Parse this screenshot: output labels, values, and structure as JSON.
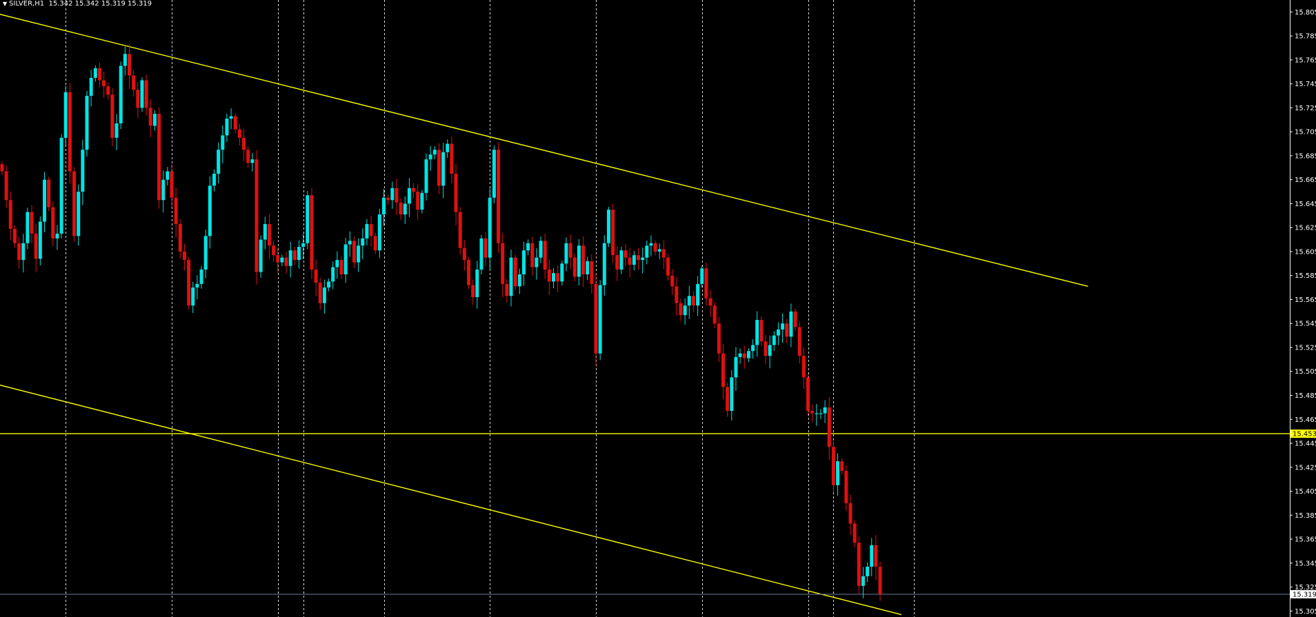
{
  "header": {
    "symbol": "SILVER,H1",
    "open": "15.342",
    "high": "15.342",
    "low": "15.319",
    "close": "15.319",
    "collapse_icon": "triangle-down-icon"
  },
  "colors": {
    "background": "#000000",
    "bull_candle": "#00e5e5",
    "bear_candle": "#e01010",
    "trendline": "#ffff00",
    "vgrid": "#ffffff",
    "axis_text": "#ffffff",
    "last_price_line": "#6a7f99",
    "last_price_tag": "#ffffff",
    "horizontal_level_tag": "#ffff00"
  },
  "chart_data": {
    "type": "candlestick",
    "symbol": "SILVER",
    "timeframe": "H1",
    "price_ticks": [
      "15.805",
      "15.785",
      "15.765",
      "15.745",
      "15.725",
      "15.705",
      "15.685",
      "15.665",
      "15.645",
      "15.625",
      "15.605",
      "15.585",
      "15.565",
      "15.545",
      "15.525",
      "15.505",
      "15.485",
      "15.465",
      "15.445",
      "15.425",
      "15.405",
      "15.385",
      "15.365",
      "15.345",
      "15.325",
      "15.305"
    ],
    "y_range": [
      15.3,
      15.815
    ],
    "horizontal_level": {
      "value": 15.453,
      "label": "15.453"
    },
    "last_price": {
      "value": 15.319,
      "label": "15.319"
    },
    "trendlines": [
      {
        "name": "upper-channel",
        "p1": {
          "bar": -1,
          "price": 15.8035
        },
        "p2": {
          "bar": 256,
          "price": 15.576
        }
      },
      {
        "name": "lower-channel",
        "p1": {
          "bar": -1,
          "price": 15.494
        },
        "p2": {
          "bar": 212,
          "price": 15.302
        }
      }
    ],
    "vgrid_bars": [
      15,
      40,
      65,
      71,
      90,
      115,
      140,
      165,
      190,
      196,
      215
    ],
    "closes": [
      15.672,
      15.648,
      15.624,
      15.612,
      15.598,
      15.612,
      15.638,
      15.62,
      15.599,
      15.63,
      15.665,
      15.642,
      15.616,
      15.62,
      15.7,
      15.738,
      15.672,
      15.618,
      15.655,
      15.69,
      15.735,
      15.75,
      15.758,
      15.748,
      15.743,
      15.736,
      15.7,
      15.712,
      15.76,
      15.77,
      15.752,
      15.74,
      15.725,
      15.748,
      15.725,
      15.71,
      15.72,
      15.648,
      15.665,
      15.672,
      15.65,
      15.628,
      15.605,
      15.598,
      15.56,
      15.575,
      15.578,
      15.59,
      15.618,
      15.66,
      15.67,
      15.69,
      15.702,
      15.716,
      15.718,
      15.707,
      15.7,
      15.69,
      15.679,
      15.682,
      15.588,
      15.615,
      15.628,
      15.61,
      15.602,
      15.596,
      15.6,
      15.593,
      15.606,
      15.598,
      15.609,
      15.612,
      15.652,
      15.59,
      15.579,
      15.562,
      15.575,
      15.58,
      15.592,
      15.598,
      15.586,
      15.611,
      15.614,
      15.596,
      15.61,
      15.616,
      15.628,
      15.618,
      15.606,
      15.636,
      15.65,
      15.648,
      15.658,
      15.646,
      15.636,
      15.645,
      15.658,
      15.655,
      15.64,
      15.654,
      15.682,
      15.686,
      15.69,
      15.66,
      15.688,
      15.695,
      15.67,
      15.638,
      15.608,
      15.598,
      15.577,
      15.567,
      15.59,
      15.616,
      15.6,
      15.65,
      15.69,
      15.612,
      15.578,
      15.568,
      15.6,
      15.576,
      15.586,
      15.606,
      15.612,
      15.592,
      15.6,
      15.614,
      15.59,
      15.58,
      15.587,
      15.58,
      15.595,
      15.612,
      15.6,
      15.584,
      15.61,
      15.586,
      15.597,
      15.578,
      15.52,
      15.577,
      15.612,
      15.64,
      15.602,
      15.59,
      15.606,
      15.6,
      15.594,
      15.602,
      15.598,
      15.6,
      15.61,
      15.612,
      15.605,
      15.607,
      15.6,
      15.585,
      15.576,
      15.562,
      15.552,
      15.56,
      15.568,
      15.56,
      15.578,
      15.591,
      15.566,
      15.56,
      15.545,
      15.52,
      15.492,
      15.472,
      15.5,
      15.517,
      15.52,
      15.516,
      15.522,
      15.527,
      15.548,
      15.53,
      15.518,
      15.527,
      15.535,
      15.54,
      15.545,
      15.534,
      15.555,
      15.542,
      15.518,
      15.5,
      15.472,
      15.47,
      15.47,
      15.47,
      15.475,
      15.442,
      15.41,
      15.43,
      15.422,
      15.395,
      15.378,
      15.362,
      15.326,
      15.334,
      15.342,
      15.36,
      15.342,
      15.319
    ],
    "bars_shown": 216
  }
}
